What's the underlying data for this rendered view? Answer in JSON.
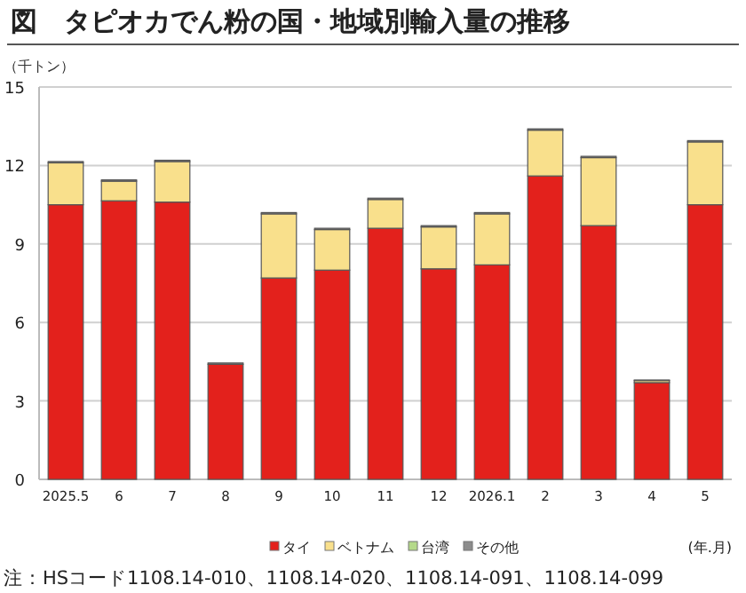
{
  "chart_data": {
    "type": "bar",
    "stacked": true,
    "title": "図　タピオカでん粉の国・地域別輸入量の推移",
    "ylabel": "（千トン）",
    "xlabel": "(年.月)",
    "categories": [
      "2025.5",
      "6",
      "7",
      "8",
      "9",
      "10",
      "11",
      "12",
      "2026.1",
      "2",
      "3",
      "4",
      "5"
    ],
    "series": [
      {
        "name": "タイ",
        "color": "#e3211c",
        "values": [
          10.5,
          10.65,
          10.6,
          4.4,
          7.7,
          8.0,
          9.6,
          8.05,
          8.2,
          11.6,
          9.7,
          3.7,
          10.5
        ]
      },
      {
        "name": "ベトナム",
        "color": "#f9e08c",
        "values": [
          1.6,
          0.75,
          1.55,
          0.0,
          2.45,
          1.55,
          1.1,
          1.6,
          1.95,
          1.75,
          2.6,
          0.08,
          2.4
        ]
      },
      {
        "name": "台湾",
        "color": "#b5d98a",
        "values": [
          0.0,
          0.0,
          0.0,
          0.0,
          0.0,
          0.0,
          0.0,
          0.0,
          0.0,
          0.0,
          0.0,
          0.02,
          0.0
        ]
      },
      {
        "name": "その他",
        "color": "#8c8c8c",
        "values": [
          0.05,
          0.05,
          0.05,
          0.05,
          0.05,
          0.05,
          0.05,
          0.05,
          0.05,
          0.05,
          0.05,
          0.0,
          0.05
        ]
      }
    ],
    "ylim": [
      0,
      15
    ],
    "yticks": [
      0,
      3,
      6,
      9,
      12,
      15
    ],
    "grid": "y",
    "legend": "bottom",
    "annotations": [
      "注：HSコード1108.14-010、1108.14-020、1108.14-091、1108.14-099"
    ]
  }
}
